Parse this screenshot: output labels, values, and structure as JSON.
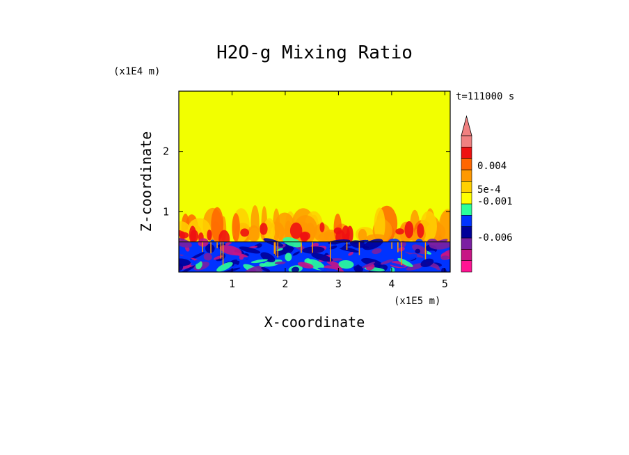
{
  "chart_data": {
    "type": "heatmap",
    "title": "H2O-g Mixing Ratio",
    "xlabel": "X-coordinate",
    "ylabel": "Z-coordinate",
    "x_scale_label": "(x1E5 m)",
    "y_scale_label": "(x1E4 m)",
    "time_label": "t=111000 s",
    "xlim": [
      0,
      5.1
    ],
    "ylim": [
      0,
      3.0
    ],
    "x_ticks": [
      1,
      2,
      3,
      4,
      5
    ],
    "y_ticks": [
      1,
      2
    ],
    "x_tick_labels": [
      "1",
      "2",
      "3",
      "4",
      "5"
    ],
    "y_tick_labels": [
      "1",
      "2"
    ],
    "description_regions": [
      {
        "name": "lower layer",
        "z_range": [
          0,
          0.5
        ],
        "dominant_level": "blue / dark blue (negative anomaly)"
      },
      {
        "name": "mixing zone",
        "z_range": [
          0.5,
          1.0
        ],
        "dominant_level": "orange / red plumes"
      },
      {
        "name": "upper domain",
        "z_range": [
          1.0,
          3.0
        ],
        "dominant_level": "yellow"
      }
    ],
    "colorbar": {
      "levels": [
        {
          "color": "#ff1493"
        },
        {
          "color": "#c71585"
        },
        {
          "color": "#7b1fa2"
        },
        {
          "color": "#000099"
        },
        {
          "color": "#0033ff"
        },
        {
          "color": "#2bff9a"
        },
        {
          "color": "#ffff00"
        },
        {
          "color": "#ffd000"
        },
        {
          "color": "#ff9900"
        },
        {
          "color": "#ff6600"
        },
        {
          "color": "#ee1111"
        },
        {
          "color": "#f08080"
        }
      ],
      "tick_labels": [
        "0.004",
        "5e-4",
        "-0.001",
        "-0.006"
      ],
      "tick_values": [
        0.004,
        0.0005,
        -0.001,
        -0.006
      ],
      "extend": "max"
    }
  },
  "colors": {
    "background_field": "#f2ff00",
    "lower_layer": "#0033ff"
  }
}
